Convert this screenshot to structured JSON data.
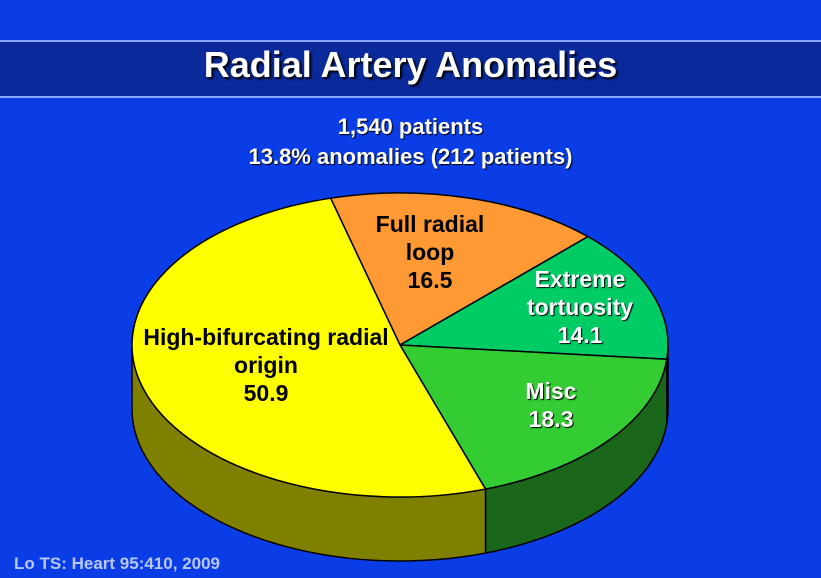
{
  "chart_data": {
    "type": "pie",
    "title": "Radial Artery Anomalies",
    "subtitle": [
      "1,540 patients",
      "13.8% anomalies (212 patients)"
    ],
    "categories": [
      "Full radial loop",
      "Extreme tortuosity",
      "Misc",
      "High-bifurcating radial origin"
    ],
    "values": [
      16.5,
      14.1,
      18.3,
      50.9
    ],
    "colors": [
      "#ff9933",
      "#00cc66",
      "#33cc33",
      "#ffff00"
    ],
    "source": "Lo TS: Heart 95:410, 2009"
  }
}
